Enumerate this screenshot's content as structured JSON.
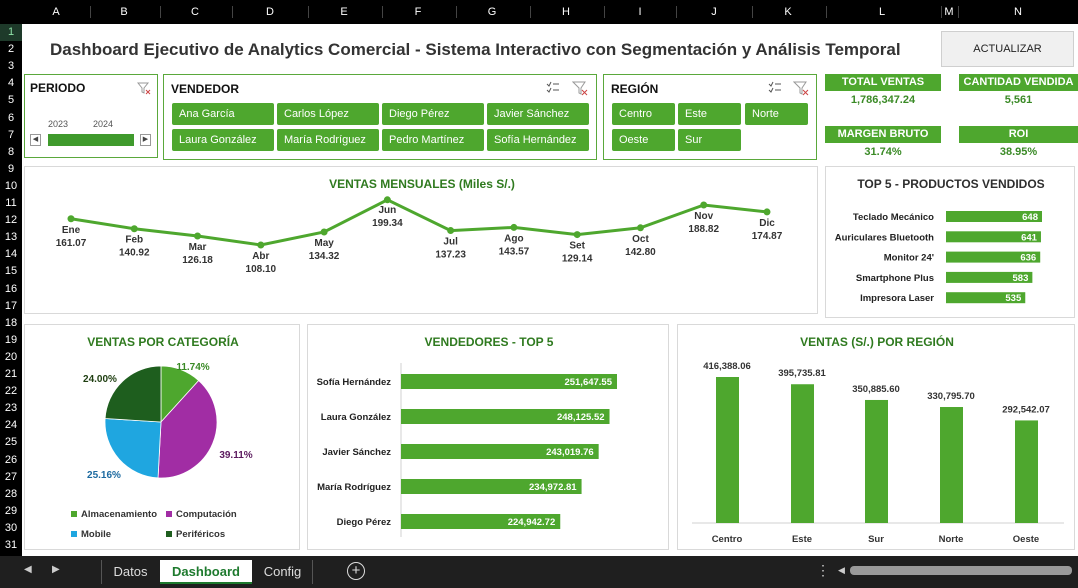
{
  "columns": [
    "A",
    "B",
    "C",
    "D",
    "E",
    "F",
    "G",
    "H",
    "I",
    "J",
    "K",
    "L",
    "M",
    "N"
  ],
  "rows": [
    "1",
    "2",
    "3",
    "4",
    "5",
    "6",
    "7",
    "8",
    "9",
    "10",
    "11",
    "12",
    "13",
    "14",
    "15",
    "16",
    "17",
    "18",
    "19",
    "20",
    "21",
    "22",
    "23",
    "24",
    "25",
    "26",
    "27",
    "28",
    "29",
    "30",
    "31"
  ],
  "header": {
    "title": "Dashboard Ejecutivo de Analytics Comercial - Sistema Interactivo con Segmentación y Análisis Temporal",
    "update_button": "ACTUALIZAR"
  },
  "periodo": {
    "label": "PERIODO",
    "years": [
      "2023",
      "2024"
    ]
  },
  "vendedor": {
    "label": "VENDEDOR",
    "items": [
      "Ana García",
      "Carlos López",
      "Diego Pérez",
      "Javier Sánchez",
      "Laura González",
      "María Rodríguez",
      "Pedro Martínez",
      "Sofía Hernández"
    ]
  },
  "region": {
    "label": "REGIÓN",
    "items": [
      "Centro",
      "Este",
      "Norte",
      "Oeste",
      "Sur"
    ]
  },
  "kpis": {
    "total_ventas": {
      "label": "TOTAL VENTAS",
      "value": "1,786,347.24"
    },
    "cantidad_vendida": {
      "label": "CANTIDAD VENDIDA",
      "value": "5,561"
    },
    "margen_bruto": {
      "label": "MARGEN BRUTO",
      "value": "31.74%"
    },
    "roi": {
      "label": "ROI",
      "value": "38.95%"
    }
  },
  "chart_data": [
    {
      "type": "line",
      "title": "VENTAS MENSUALES (Miles S/.)",
      "categories": [
        "Ene",
        "Feb",
        "Mar",
        "Abr",
        "May",
        "Jun",
        "Jul",
        "Ago",
        "Set",
        "Oct",
        "Nov",
        "Dic"
      ],
      "values": [
        161.07,
        140.92,
        126.18,
        108.1,
        134.32,
        199.34,
        137.23,
        143.57,
        129.14,
        142.8,
        188.82,
        174.87
      ],
      "value_labels": [
        "161.07",
        "140.92",
        "126.18",
        "108.10",
        "134.32",
        "199.34",
        "137.23",
        "143.57",
        "129.14",
        "142.80",
        "188.82",
        "174.87"
      ],
      "color": "#4ea72e"
    },
    {
      "type": "bar",
      "orientation": "horizontal",
      "title": "TOP 5 - PRODUCTOS VENDIDOS",
      "categories": [
        "Teclado Mecánico",
        "Auriculares Bluetooth",
        "Monitor 24'",
        "Smartphone Plus",
        "Impresora Laser"
      ],
      "values": [
        648,
        641,
        636,
        583,
        535
      ],
      "value_labels": [
        "648",
        "641",
        "636",
        "583",
        "535"
      ],
      "color": "#4ea72e"
    },
    {
      "type": "pie",
      "title": "VENTAS POR CATEGORÍA",
      "categories": [
        "Almacenamiento",
        "Computación",
        "Mobile",
        "Periféricos"
      ],
      "values": [
        11.74,
        39.11,
        25.16,
        24.0
      ],
      "value_labels": [
        "11.74%",
        "39.11%",
        "25.16%",
        "24.00%"
      ],
      "colors": [
        "#4ea72e",
        "#a12da4",
        "#1fa6e0",
        "#1e5e1e"
      ],
      "label_colors": [
        "#3a8a26",
        "#5b1a5e",
        "#1c6aa0",
        "#1e3e10"
      ]
    },
    {
      "type": "bar",
      "orientation": "horizontal",
      "title": "VENDEDORES - TOP 5",
      "categories": [
        "Sofía Hernández",
        "Laura González",
        "Javier Sánchez",
        "María Rodríguez",
        "Diego Pérez"
      ],
      "values": [
        251647.55,
        248125.52,
        243019.76,
        234972.81,
        224942.72
      ],
      "value_labels": [
        "251,647.55",
        "248,125.52",
        "243,019.76",
        "234,972.81",
        "224,942.72"
      ],
      "color": "#4ea72e"
    },
    {
      "type": "bar",
      "orientation": "vertical",
      "title": "VENTAS (S/.) POR REGIÓN",
      "categories": [
        "Centro",
        "Este",
        "Sur",
        "Norte",
        "Oeste"
      ],
      "values": [
        416388.06,
        395735.81,
        350885.6,
        330795.7,
        292542.07
      ],
      "value_labels": [
        "416,388.06",
        "395,735.81",
        "350,885.60",
        "330,795.70",
        "292,542.07"
      ],
      "color": "#4ea72e"
    }
  ],
  "sheet_tabs": [
    "Datos",
    "Dashboard",
    "Config"
  ],
  "active_tab": "Dashboard",
  "colors": {
    "accent": "#4ea72e",
    "dark_green_text": "#2f7a1f",
    "header_bg": "#000000"
  }
}
